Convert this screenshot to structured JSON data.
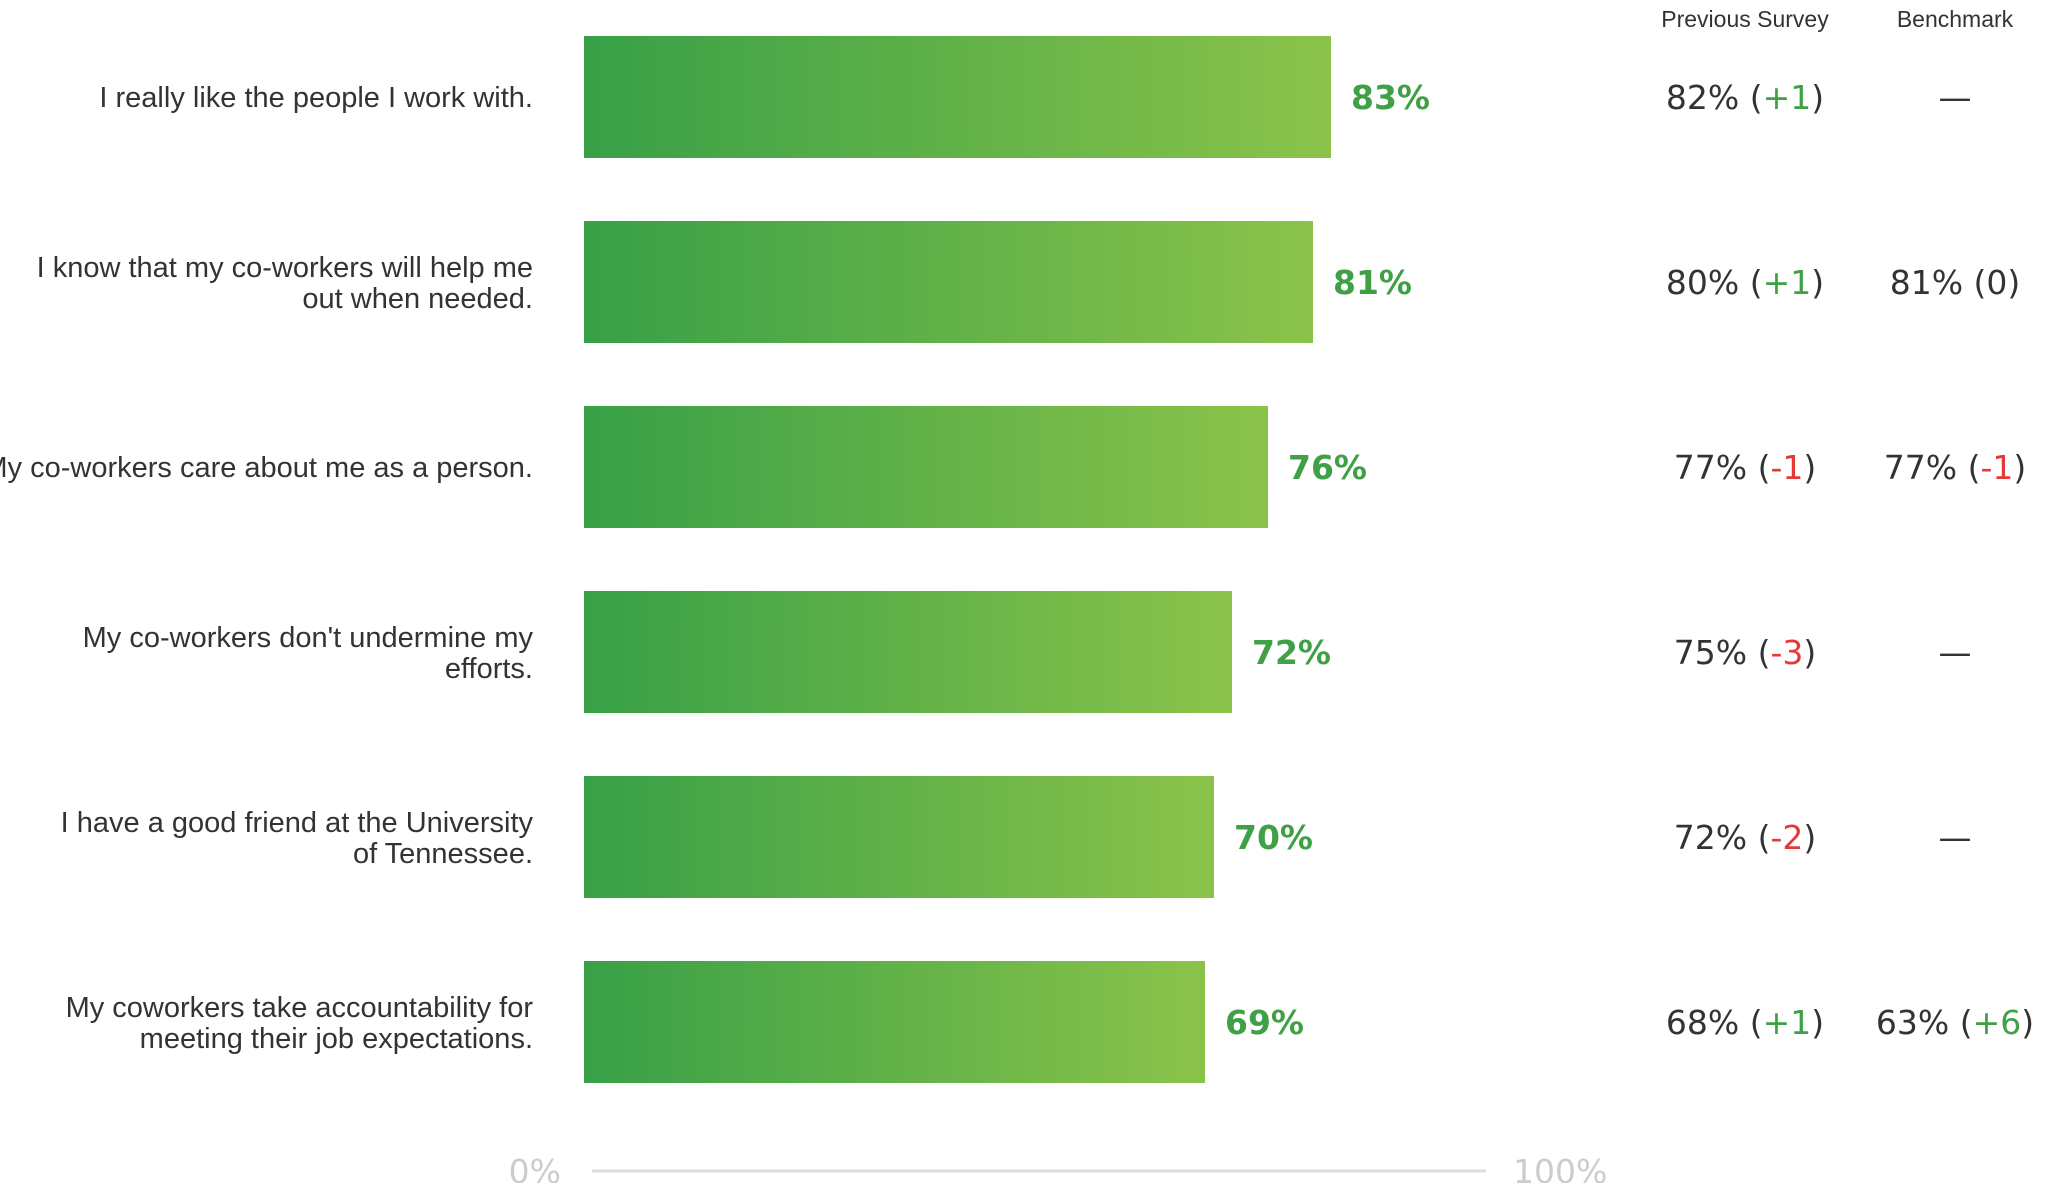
{
  "columns": {
    "previous": "Previous Survey",
    "benchmark": "Benchmark"
  },
  "colors": {
    "bar_start": "#38a047",
    "bar_end": "#8bc34a",
    "value": "#3fa046",
    "positive": "#3fa046",
    "negative": "#e53935",
    "neutral": "#333333",
    "axis": "#dddddd",
    "axis_text": "#cccccc"
  },
  "chart_data": {
    "type": "bar",
    "orientation": "horizontal",
    "xlim": [
      0,
      100
    ],
    "x_tick_labels": [
      "0%",
      "100%"
    ],
    "categories": [
      "I really like the people I work with.",
      "I know that my co-workers will help me out when needed.",
      "My co-workers care about me as a person.",
      "My co-workers don't undermine my efforts.",
      "I have a good friend at the University of Tennessee.",
      "My coworkers take accountability for meeting their job expectations."
    ],
    "values": [
      83,
      81,
      76,
      72,
      70,
      69
    ],
    "value_labels": [
      "83%",
      "81%",
      "76%",
      "72%",
      "70%",
      "69%"
    ],
    "previous_survey": [
      {
        "value": "82%",
        "delta": "+1",
        "sign": "positive"
      },
      {
        "value": "80%",
        "delta": "+1",
        "sign": "positive"
      },
      {
        "value": "77%",
        "delta": "-1",
        "sign": "negative"
      },
      {
        "value": "75%",
        "delta": "-3",
        "sign": "negative"
      },
      {
        "value": "72%",
        "delta": "-2",
        "sign": "negative"
      },
      {
        "value": "68%",
        "delta": "+1",
        "sign": "positive"
      }
    ],
    "benchmark": [
      {
        "value": "—",
        "delta": "",
        "sign": "none"
      },
      {
        "value": "81%",
        "delta": "0",
        "sign": "neutral"
      },
      {
        "value": "77%",
        "delta": "-1",
        "sign": "negative"
      },
      {
        "value": "—",
        "delta": "",
        "sign": "none"
      },
      {
        "value": "—",
        "delta": "",
        "sign": "none"
      },
      {
        "value": "63%",
        "delta": "+6",
        "sign": "positive"
      }
    ]
  }
}
